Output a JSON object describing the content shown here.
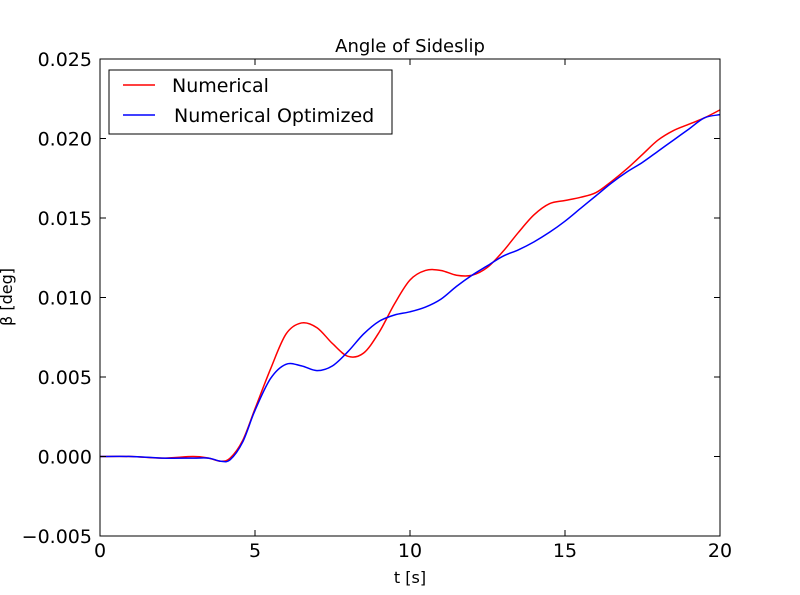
{
  "chart_data": {
    "type": "line",
    "title": "Angle of Sideslip",
    "xlabel": "t [s]",
    "ylabel": "β [deg]",
    "xlim": [
      0,
      20
    ],
    "ylim": [
      -0.005,
      0.025
    ],
    "xticks": [
      0,
      5,
      10,
      15,
      20
    ],
    "xtick_labels": [
      "0",
      "5",
      "10",
      "15",
      "20"
    ],
    "yticks": [
      -0.005,
      0.0,
      0.005,
      0.01,
      0.015,
      0.02,
      0.025
    ],
    "ytick_labels": [
      "−0.005",
      "0.000",
      "0.005",
      "0.010",
      "0.015",
      "0.020",
      "0.025"
    ],
    "grid": false,
    "legend_position": "top-left",
    "series": [
      {
        "name": "Numerical",
        "color": "#ff0000",
        "x": [
          0,
          1,
          2,
          3,
          3.5,
          3.9,
          4.2,
          4.6,
          5.0,
          5.5,
          6.0,
          6.5,
          7.0,
          7.5,
          8.0,
          8.5,
          9.0,
          9.5,
          10.0,
          10.5,
          11.0,
          11.5,
          12.0,
          12.5,
          13.0,
          13.5,
          14.0,
          14.5,
          15.0,
          15.5,
          16.0,
          16.5,
          17.0,
          17.5,
          18.0,
          18.5,
          19.0,
          19.5,
          20.0
        ],
        "y": [
          0.0,
          0.0,
          -0.0001,
          0.0,
          -0.0001,
          -0.0003,
          -0.0001,
          0.001,
          0.003,
          0.0055,
          0.0077,
          0.0084,
          0.0081,
          0.0071,
          0.0063,
          0.0065,
          0.0078,
          0.0096,
          0.0111,
          0.0117,
          0.0117,
          0.0114,
          0.0114,
          0.0119,
          0.0129,
          0.0141,
          0.0152,
          0.0159,
          0.0161,
          0.0163,
          0.0166,
          0.0173,
          0.0181,
          0.019,
          0.0199,
          0.0205,
          0.0209,
          0.0213,
          0.0218
        ]
      },
      {
        "name": "Numerical Optimized",
        "color": "#0000ff",
        "x": [
          0,
          1,
          2,
          3,
          3.5,
          3.9,
          4.2,
          4.6,
          5.0,
          5.5,
          6.0,
          6.5,
          7.0,
          7.5,
          8.0,
          8.5,
          9.0,
          9.5,
          10.0,
          10.5,
          11.0,
          11.5,
          12.0,
          12.5,
          13.0,
          13.5,
          14.0,
          14.5,
          15.0,
          15.5,
          16.0,
          16.5,
          17.0,
          17.5,
          18.0,
          18.5,
          19.0,
          19.5,
          20.0
        ],
        "y": [
          0.0,
          0.0,
          -0.0001,
          -0.0001,
          -0.0001,
          -0.0003,
          -0.0002,
          0.0009,
          0.0029,
          0.0049,
          0.0058,
          0.0057,
          0.0054,
          0.0057,
          0.0066,
          0.0077,
          0.0085,
          0.0089,
          0.0091,
          0.0094,
          0.0099,
          0.0107,
          0.0114,
          0.012,
          0.0126,
          0.013,
          0.0135,
          0.0141,
          0.0148,
          0.0156,
          0.0164,
          0.0172,
          0.0179,
          0.0185,
          0.0192,
          0.0199,
          0.0206,
          0.0213,
          0.0215
        ]
      }
    ]
  }
}
